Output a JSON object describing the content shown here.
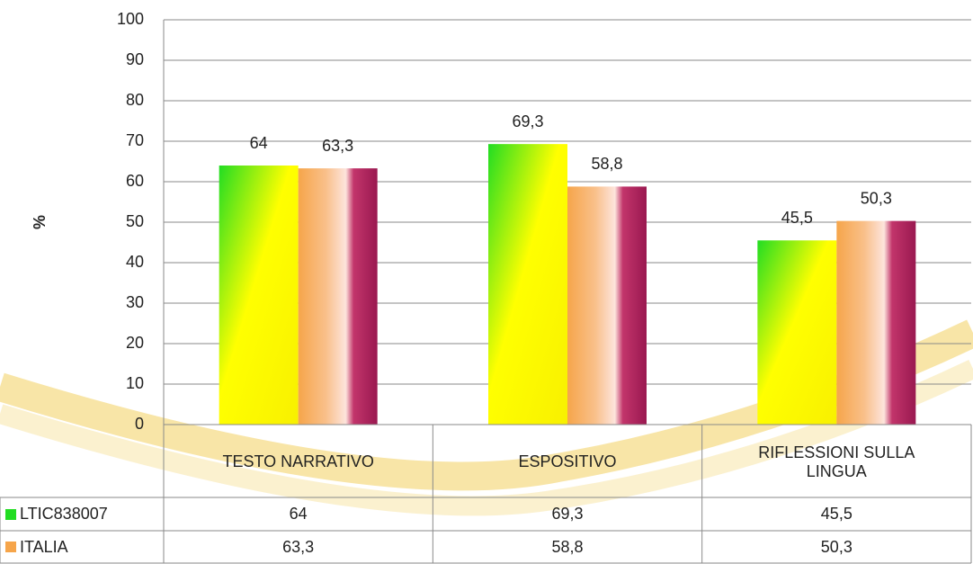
{
  "chart_data": {
    "type": "bar",
    "y_label": "%",
    "categories": [
      "TESTO NARRATIVO",
      "ESPOSITIVO",
      "RIFLESSIONI SULLA LINGUA"
    ],
    "series": [
      {
        "name": "LTIC838007",
        "color": "#22dd22",
        "values": [
          64,
          69.3,
          45.5
        ],
        "value_labels": [
          "64",
          "69,3",
          "45,5"
        ]
      },
      {
        "name": "ITALIA",
        "color": "#f6a54a",
        "values": [
          63.3,
          58.8,
          50.3
        ],
        "value_labels": [
          "63,3",
          "58,8",
          "50,3"
        ]
      }
    ],
    "ylim": [
      0,
      100
    ],
    "yticks": [
      0,
      10,
      20,
      30,
      40,
      50,
      60,
      70,
      80,
      90,
      100
    ],
    "grid": true
  }
}
